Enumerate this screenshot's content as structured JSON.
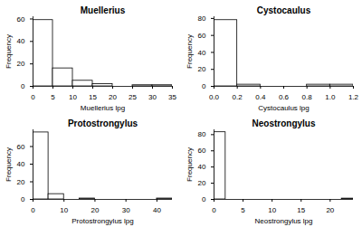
{
  "chart_data": [
    {
      "type": "histogram",
      "title": "Muellerius",
      "x_label": "Muellerius lpg",
      "y_label": "Frequency",
      "bins": [
        0,
        5,
        10,
        15,
        20,
        25,
        30,
        35
      ],
      "values": [
        59,
        16,
        5,
        2,
        0,
        1,
        1
      ],
      "color": "#ffffff",
      "xlim": [
        0,
        35
      ],
      "ylim": [
        0,
        62
      ],
      "xticks": [
        0,
        5,
        10,
        15,
        20,
        25,
        30,
        35
      ],
      "yticks": [
        0,
        20,
        40,
        60
      ]
    },
    {
      "type": "histogram",
      "title": "Cystocaulus",
      "x_label": "Cystocaulus lpg",
      "y_label": "Frequency",
      "bins": [
        0,
        0.2,
        0.4,
        0.6,
        0.8,
        1.0,
        1.2
      ],
      "values": [
        78,
        2,
        0,
        0,
        2,
        2
      ],
      "color": "#ffffff",
      "xlim": [
        0,
        1.2
      ],
      "ylim": [
        0,
        82
      ],
      "xticks": [
        {
          "value": 0,
          "label": "0.0"
        },
        0.2,
        0.4,
        0.6,
        0.8,
        {
          "value": 1,
          "label": "1.0"
        },
        1.2
      ],
      "yticks": [
        0,
        20,
        40,
        60,
        80
      ]
    },
    {
      "type": "histogram",
      "title": "Protostrongylus",
      "x_label": "Protostrongylus lpg",
      "y_label": "Frequency",
      "bins": [
        0,
        5,
        10,
        15,
        20,
        25,
        30,
        35,
        40,
        45
      ],
      "values": [
        76,
        6,
        0,
        1,
        0,
        0,
        0,
        0,
        1
      ],
      "color": "#ffffff",
      "xlim": [
        0,
        45
      ],
      "ylim": [
        0,
        79
      ],
      "xticks": [
        0,
        10,
        20,
        30,
        40
      ],
      "yticks": [
        0,
        20,
        40,
        60
      ]
    },
    {
      "type": "histogram",
      "title": "Neostrongylus",
      "x_label": "Neostrongylus lpg",
      "y_label": "Frequency",
      "bins": [
        0,
        2,
        4,
        6,
        8,
        10,
        12,
        14,
        16,
        18,
        20,
        22,
        24
      ],
      "values": [
        83,
        0,
        0,
        0,
        0,
        0,
        0,
        0,
        0,
        0,
        0,
        1
      ],
      "color": "#ffffff",
      "xlim": [
        0,
        24
      ],
      "ylim": [
        0,
        86
      ],
      "xticks": [
        0,
        5,
        10,
        15,
        20
      ],
      "yticks": [
        0,
        20,
        40,
        60,
        80
      ]
    }
  ]
}
